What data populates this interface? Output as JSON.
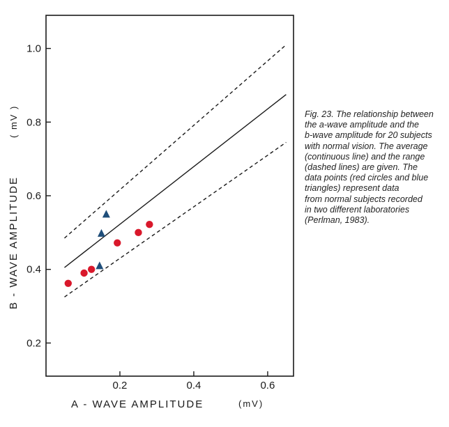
{
  "chart_data": {
    "type": "scatter",
    "xlabel": "A - WAVE   AMPLITUDE",
    "xunit": "(mV)",
    "ylabel": "B - WAVE   AMPLITUDE",
    "yunit": "( mV )",
    "xlim": [
      0.0,
      0.67
    ],
    "ylim": [
      0.11,
      1.09
    ],
    "xticks": [
      0.2,
      0.4,
      0.6
    ],
    "xtick_labels": [
      "0.2",
      "0.4",
      "0.6"
    ],
    "yticks": [
      0.2,
      0.4,
      0.6,
      0.8,
      1.0
    ],
    "ytick_labels": [
      "0.2",
      "0.4",
      "0.6",
      "0.8",
      "1.0"
    ],
    "grid": false,
    "lines": [
      {
        "style": "solid",
        "x": [
          0.05,
          0.65
        ],
        "y": [
          0.405,
          0.875
        ]
      },
      {
        "style": "dashed",
        "x": [
          0.05,
          0.65
        ],
        "y": [
          0.485,
          1.01
        ]
      },
      {
        "style": "dashed",
        "x": [
          0.05,
          0.65
        ],
        "y": [
          0.325,
          0.745
        ]
      }
    ],
    "series": [
      {
        "marker": "circle",
        "color": "#d9182b",
        "points": [
          {
            "x": 0.06,
            "y": 0.362
          },
          {
            "x": 0.103,
            "y": 0.39
          },
          {
            "x": 0.123,
            "y": 0.4
          },
          {
            "x": 0.193,
            "y": 0.472
          },
          {
            "x": 0.25,
            "y": 0.5
          },
          {
            "x": 0.28,
            "y": 0.522
          }
        ]
      },
      {
        "marker": "triangle",
        "color": "#1f4e7a",
        "points": [
          {
            "x": 0.163,
            "y": 0.55
          },
          {
            "x": 0.15,
            "y": 0.498
          },
          {
            "x": 0.145,
            "y": 0.41
          }
        ]
      }
    ]
  },
  "caption": {
    "lines": [
      "Fig. 23. The relationship between",
      "the a-wave amplitude and the",
      "b-wave amplitude for 20 subjects",
      "with normal vision. The average",
      "(continuous line) and the range",
      "(dashed lines) are given. The",
      "data points (red circles and blue",
      "triangles) represent data",
      "from normal subjects recorded",
      "in two different laboratories",
      "(Perlman, 1983)."
    ]
  }
}
